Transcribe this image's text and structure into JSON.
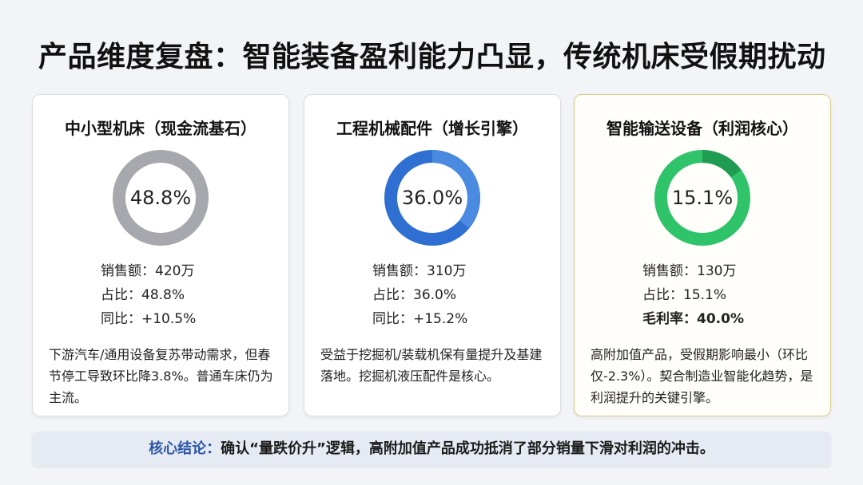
{
  "title": "产品维度复盘：智能装备盈利能力凸显，传统机床受假期扰动",
  "cards": [
    {
      "title": "中小型机床（现金流基石）",
      "percent_label": "48.8%",
      "share": 0.488,
      "ring_color": "#a7a8ad",
      "ring_light": "#a7a8ad",
      "sales": "销售额：420万",
      "ratio": "占比：48.8%",
      "third": "同比：+10.5%",
      "third_bold": false,
      "desc": "下游汽车/通用设备复苏带动需求，但春节停工导致环比降3.8%。普通车床仍为主流。"
    },
    {
      "title": "工程机械配件（增长引擎）",
      "percent_label": "36.0%",
      "share": 0.36,
      "ring_color": "#2f6fd1",
      "ring_light": "#4a8ae0",
      "sales": "销售额：310万",
      "ratio": "占比：36.0%",
      "third": "同比：+15.2%",
      "third_bold": false,
      "desc": "受益于挖掘机/装载机保有量提升及基建落地。挖掘机液压配件是核心。"
    },
    {
      "title": "智能输送设备（利润核心）",
      "percent_label": "15.1%",
      "share": 0.151,
      "ring_color": "#1f9c52",
      "ring_light": "#2fc36a",
      "sales": "销售额：130万",
      "ratio": "占比：15.1%",
      "third": "毛利率：40.0%",
      "third_bold": true,
      "desc": "高附加值产品，受假期影响最小（环比仅-2.3%）。契合制造业智能化趋势，是利润提升的关键引擎。"
    }
  ],
  "conclusion": {
    "lead": "核心结论：",
    "text": "确认“量跌价升”逻辑，高附加值产品成功抵消了部分销量下滑对利润的冲击。"
  }
}
